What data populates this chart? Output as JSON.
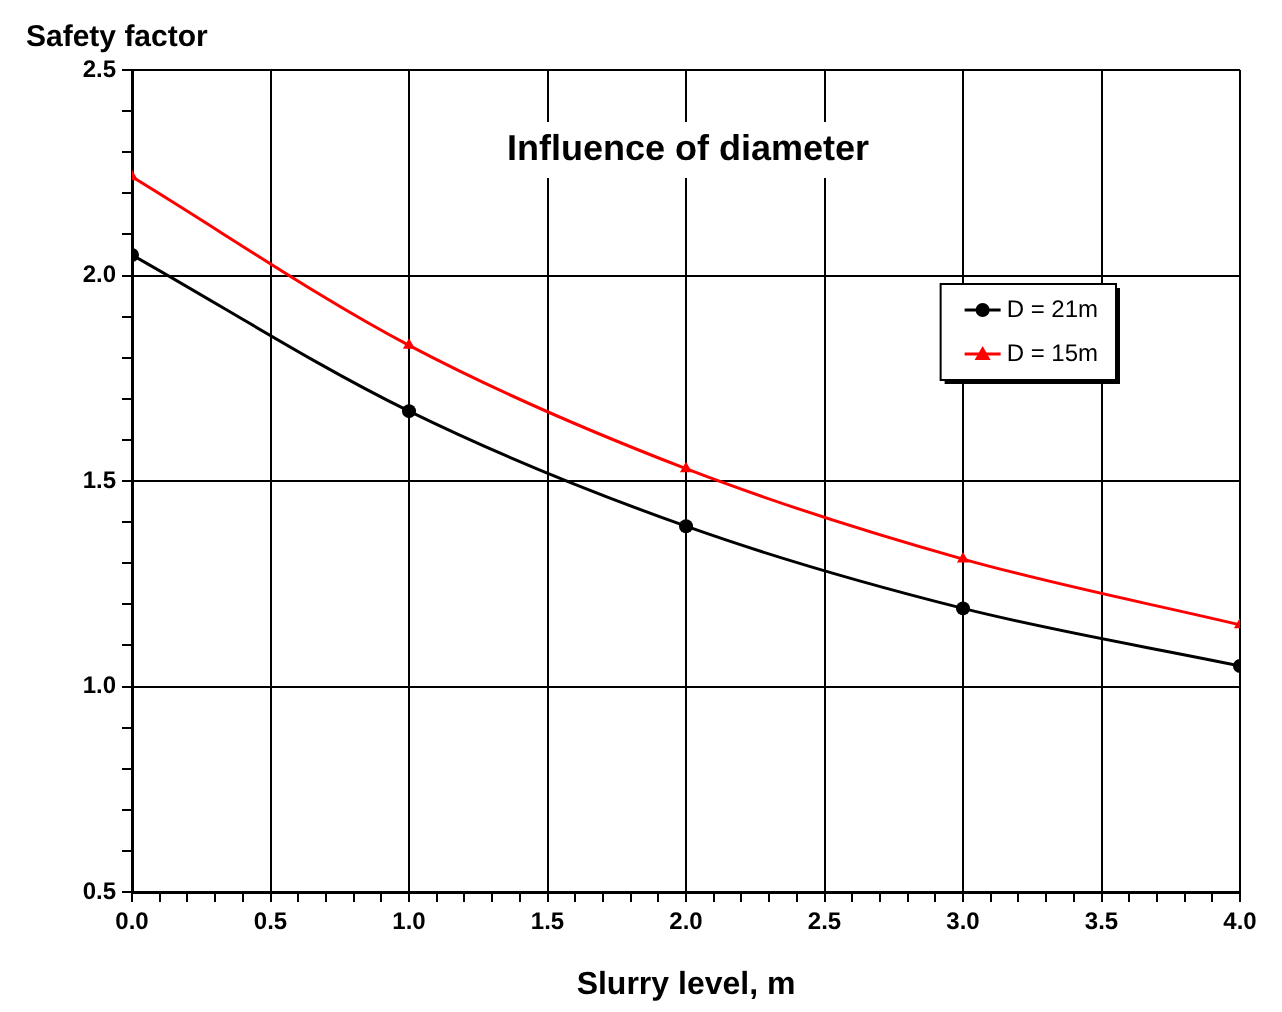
{
  "chart_data": {
    "type": "line",
    "title": "Influence of diameter",
    "xlabel": "Slurry level, m",
    "ylabel": "Safety factor",
    "x": [
      0,
      1,
      2,
      3,
      4
    ],
    "series": [
      {
        "name": "D = 21m",
        "color": "#000000",
        "marker": "circle",
        "values": [
          2.05,
          1.67,
          1.39,
          1.19,
          1.05
        ]
      },
      {
        "name": "D = 15m",
        "color": "#ff0000",
        "marker": "triangle",
        "values": [
          2.24,
          1.83,
          1.53,
          1.31,
          1.15
        ]
      }
    ],
    "xlim": [
      0,
      4
    ],
    "xticks": [
      {
        "value": 0,
        "label": "0.0"
      },
      {
        "value": 0.1,
        "label": null
      },
      {
        "value": 0.2,
        "label": null
      },
      {
        "value": 0.3,
        "label": null
      },
      {
        "value": 0.4,
        "label": null
      },
      {
        "value": 0.5,
        "label": "0.5"
      },
      {
        "value": 0.6,
        "label": null
      },
      {
        "value": 0.7,
        "label": null
      },
      {
        "value": 0.8,
        "label": null
      },
      {
        "value": 0.9,
        "label": null
      },
      {
        "value": 1,
        "label": "1.0"
      },
      {
        "value": 1.1,
        "label": null
      },
      {
        "value": 1.2,
        "label": null
      },
      {
        "value": 1.3,
        "label": null
      },
      {
        "value": 1.4,
        "label": null
      },
      {
        "value": 1.5,
        "label": "1.5"
      },
      {
        "value": 1.6,
        "label": null
      },
      {
        "value": 1.7,
        "label": null
      },
      {
        "value": 1.8,
        "label": null
      },
      {
        "value": 1.9,
        "label": null
      },
      {
        "value": 2,
        "label": "2.0"
      },
      {
        "value": 2.1,
        "label": null
      },
      {
        "value": 2.2,
        "label": null
      },
      {
        "value": 2.3,
        "label": null
      },
      {
        "value": 2.4,
        "label": null
      },
      {
        "value": 2.5,
        "label": "2.5"
      },
      {
        "value": 2.6,
        "label": null
      },
      {
        "value": 2.7,
        "label": null
      },
      {
        "value": 2.8,
        "label": null
      },
      {
        "value": 2.9,
        "label": null
      },
      {
        "value": 3,
        "label": "3.0"
      },
      {
        "value": 3.1,
        "label": null
      },
      {
        "value": 3.2,
        "label": null
      },
      {
        "value": 3.3,
        "label": null
      },
      {
        "value": 3.4,
        "label": null
      },
      {
        "value": 3.5,
        "label": "3.5"
      },
      {
        "value": 3.6,
        "label": null
      },
      {
        "value": 3.7,
        "label": null
      },
      {
        "value": 3.8,
        "label": null
      },
      {
        "value": 3.9,
        "label": null
      },
      {
        "value": 4,
        "label": "4.0"
      }
    ],
    "ylim": [
      0.5,
      2.5
    ],
    "yticks": [
      {
        "value": 0.5,
        "label": "0.5"
      },
      {
        "value": 0.6,
        "label": null
      },
      {
        "value": 0.7,
        "label": null
      },
      {
        "value": 0.8,
        "label": null
      },
      {
        "value": 0.9,
        "label": null
      },
      {
        "value": 1,
        "label": "1.0"
      },
      {
        "value": 1.1,
        "label": null
      },
      {
        "value": 1.2,
        "label": null
      },
      {
        "value": 1.3,
        "label": null
      },
      {
        "value": 1.4,
        "label": null
      },
      {
        "value": 1.5,
        "label": "1.5"
      },
      {
        "value": 1.6,
        "label": null
      },
      {
        "value": 1.7,
        "label": null
      },
      {
        "value": 1.8,
        "label": null
      },
      {
        "value": 1.9,
        "label": null
      },
      {
        "value": 2,
        "label": "2.0"
      },
      {
        "value": 2.1,
        "label": null
      },
      {
        "value": 2.2,
        "label": null
      },
      {
        "value": 2.3,
        "label": null
      },
      {
        "value": 2.4,
        "label": null
      },
      {
        "value": 2.5,
        "label": "2.5"
      }
    ],
    "grid": true,
    "legend": "top right",
    "line_style": "solid"
  }
}
